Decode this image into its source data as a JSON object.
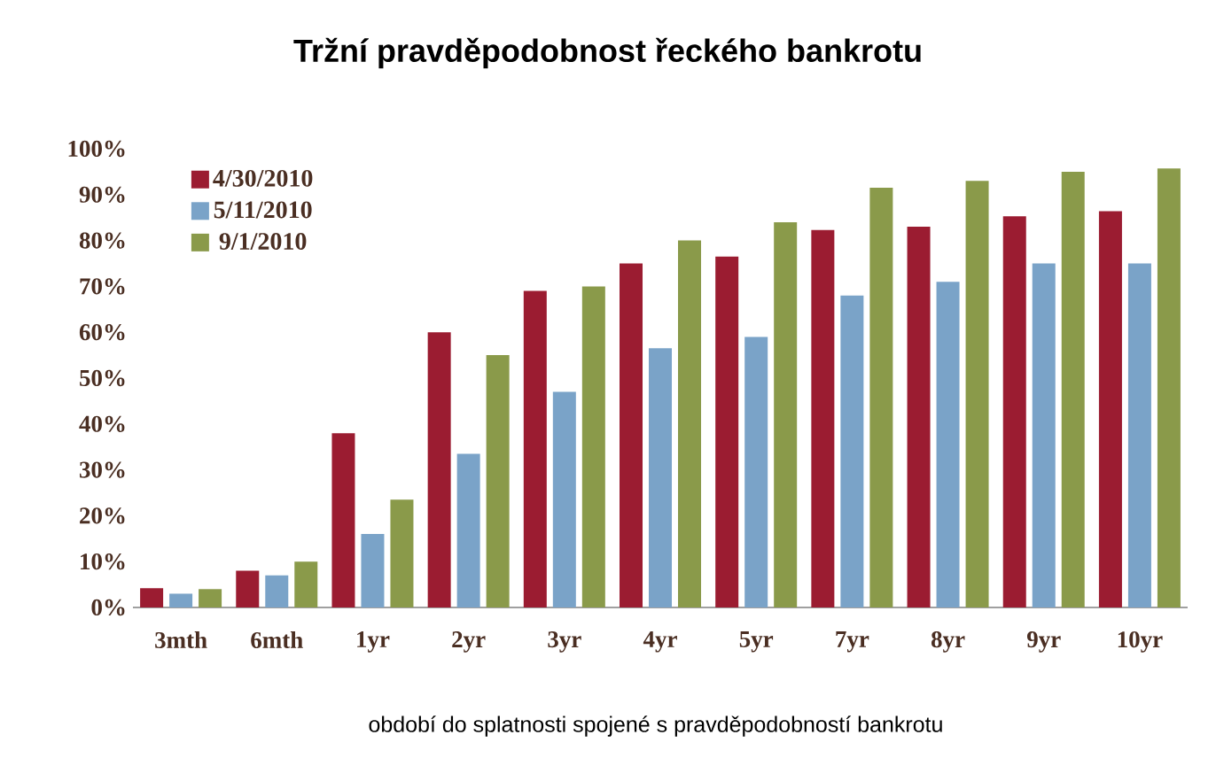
{
  "chart_data": {
    "type": "bar",
    "title": "Tržní pravděpodobnost řeckého bankrotu",
    "xlabel": "období do splatnosti spojené s pravděpodobností bankrotu",
    "categories": [
      "3mth",
      "6mth",
      "1yr",
      "2yr",
      "3yr",
      "4yr",
      "5yr",
      "7yr",
      "8yr",
      "9yr",
      "10yr"
    ],
    "series": [
      {
        "name": "4/30/2010",
        "color": "#9b1c31",
        "values": [
          4.2,
          8,
          38,
          60,
          69,
          75,
          76.5,
          82.3,
          83,
          85.3,
          86.4
        ]
      },
      {
        "name": "5/11/2010",
        "color": "#7aa3c8",
        "values": [
          3,
          7,
          16,
          33.5,
          47,
          56.5,
          59,
          68,
          71,
          75,
          75
        ]
      },
      {
        "name": "9/1/2010",
        "color": "#8a9a4a",
        "values": [
          4,
          10,
          23.5,
          55,
          70,
          80,
          84,
          91.5,
          93,
          95,
          95.7
        ]
      }
    ],
    "ylim": [
      0,
      100
    ],
    "yticks": [
      {
        "value": 0,
        "label": "0%"
      },
      {
        "value": 10,
        "label": "10%"
      },
      {
        "value": 20,
        "label": "20%"
      },
      {
        "value": 30,
        "label": "30%"
      },
      {
        "value": 40,
        "label": "40%"
      },
      {
        "value": 50,
        "label": "50%"
      },
      {
        "value": 60,
        "label": "60%"
      },
      {
        "value": 70,
        "label": "70%"
      },
      {
        "value": 80,
        "label": "80%"
      },
      {
        "value": 90,
        "label": "90%"
      },
      {
        "value": 100,
        "label": "100%"
      }
    ],
    "grid": false,
    "legend": "top left"
  }
}
